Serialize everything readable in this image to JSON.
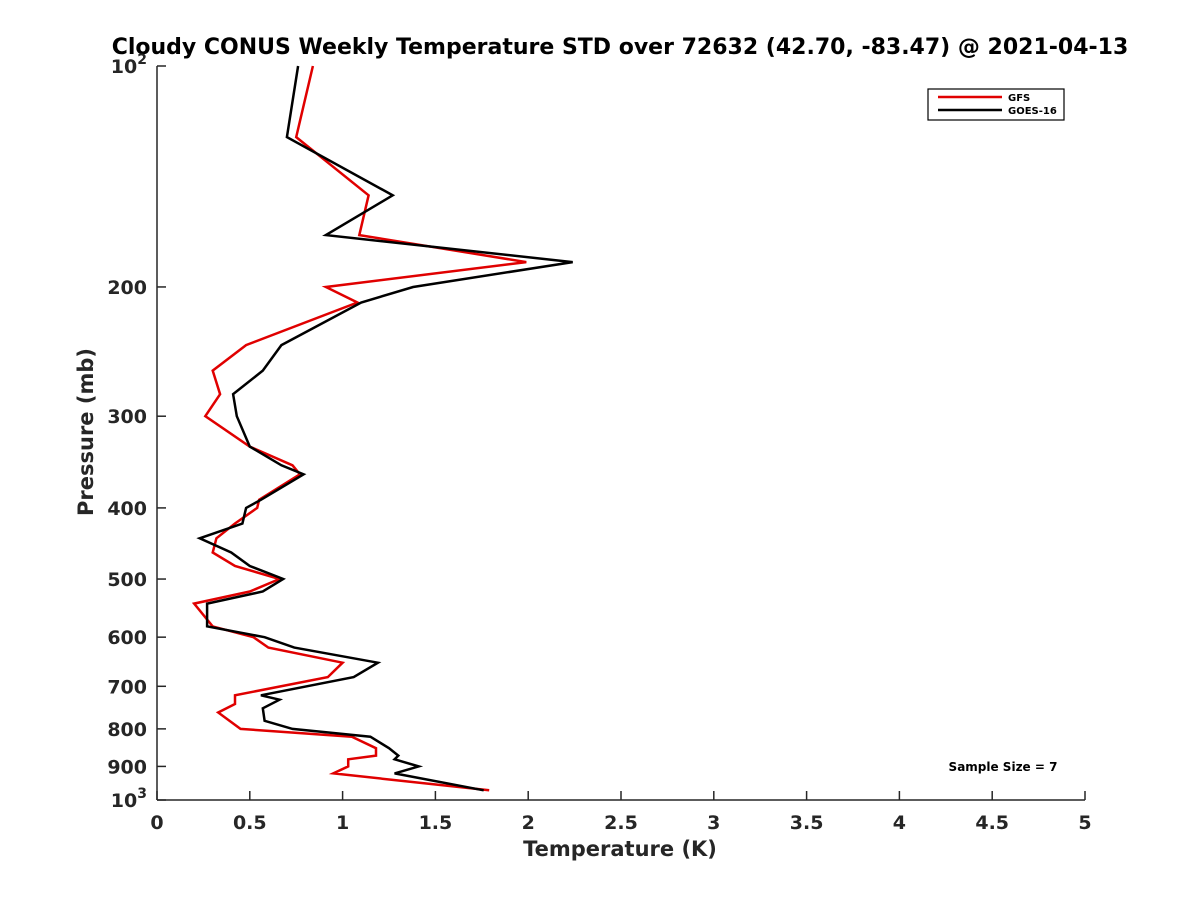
{
  "chart_data": {
    "type": "line",
    "title": "Cloudy CONUS Weekly Temperature STD over 72632 (42.70, -83.47) @ 2021-04-13",
    "xlabel": "Temperature (K)",
    "ylabel": "Pressure (mb)",
    "xlim": [
      0,
      5
    ],
    "ylim": [
      100,
      1000
    ],
    "y_scale": "log",
    "y_reversed": true,
    "x_ticks": [
      "0",
      "0.5",
      "1",
      "1.5",
      "2",
      "2.5",
      "3",
      "3.5",
      "4",
      "4.5",
      "5"
    ],
    "x_tick_values": [
      0,
      0.5,
      1,
      1.5,
      2,
      2.5,
      3,
      3.5,
      4,
      4.5,
      5
    ],
    "y_ticks": [
      {
        "value": 100,
        "base": "10",
        "exp": "2"
      },
      {
        "value": 200,
        "label": "200"
      },
      {
        "value": 300,
        "label": "300"
      },
      {
        "value": 400,
        "label": "400"
      },
      {
        "value": 500,
        "label": "500"
      },
      {
        "value": 600,
        "label": "600"
      },
      {
        "value": 700,
        "label": "700"
      },
      {
        "value": 800,
        "label": "800"
      },
      {
        "value": 900,
        "label": "900"
      },
      {
        "value": 1000,
        "base": "10",
        "exp": "3"
      }
    ],
    "grid": false,
    "legend_position": "top-right",
    "annotation": "Sample Size = 7",
    "series": [
      {
        "name": "GFS",
        "color": "#e00000",
        "points": [
          [
            0.84,
            100
          ],
          [
            0.75,
            125
          ],
          [
            1.14,
            150
          ],
          [
            1.09,
            170
          ],
          [
            1.99,
            185
          ],
          [
            0.91,
            200
          ],
          [
            1.08,
            210
          ],
          [
            0.48,
            240
          ],
          [
            0.3,
            260
          ],
          [
            0.34,
            280
          ],
          [
            0.26,
            300
          ],
          [
            0.5,
            330
          ],
          [
            0.73,
            350
          ],
          [
            0.77,
            360
          ],
          [
            0.55,
            390
          ],
          [
            0.54,
            400
          ],
          [
            0.42,
            420
          ],
          [
            0.32,
            440
          ],
          [
            0.3,
            460
          ],
          [
            0.42,
            480
          ],
          [
            0.66,
            500
          ],
          [
            0.5,
            520
          ],
          [
            0.2,
            540
          ],
          [
            0.3,
            580
          ],
          [
            0.52,
            600
          ],
          [
            0.6,
            620
          ],
          [
            1.0,
            650
          ],
          [
            0.92,
            680
          ],
          [
            0.42,
            720
          ],
          [
            0.42,
            740
          ],
          [
            0.33,
            760
          ],
          [
            0.45,
            800
          ],
          [
            1.05,
            820
          ],
          [
            1.18,
            850
          ],
          [
            1.18,
            870
          ],
          [
            1.03,
            880
          ],
          [
            1.03,
            900
          ],
          [
            0.95,
            920
          ],
          [
            1.79,
            970
          ]
        ]
      },
      {
        "name": "GOES-16",
        "color": "#000000",
        "points": [
          [
            0.76,
            100
          ],
          [
            0.7,
            125
          ],
          [
            1.27,
            150
          ],
          [
            0.91,
            170
          ],
          [
            2.24,
            185
          ],
          [
            1.38,
            200
          ],
          [
            1.1,
            210
          ],
          [
            0.67,
            240
          ],
          [
            0.57,
            260
          ],
          [
            0.41,
            280
          ],
          [
            0.43,
            300
          ],
          [
            0.5,
            330
          ],
          [
            0.67,
            350
          ],
          [
            0.79,
            360
          ],
          [
            0.56,
            390
          ],
          [
            0.48,
            400
          ],
          [
            0.46,
            420
          ],
          [
            0.23,
            440
          ],
          [
            0.4,
            460
          ],
          [
            0.5,
            480
          ],
          [
            0.68,
            500
          ],
          [
            0.57,
            520
          ],
          [
            0.27,
            540
          ],
          [
            0.27,
            580
          ],
          [
            0.58,
            600
          ],
          [
            0.74,
            620
          ],
          [
            1.19,
            650
          ],
          [
            1.06,
            680
          ],
          [
            0.56,
            720
          ],
          [
            0.66,
            730
          ],
          [
            0.57,
            750
          ],
          [
            0.58,
            780
          ],
          [
            0.73,
            800
          ],
          [
            1.15,
            820
          ],
          [
            1.25,
            850
          ],
          [
            1.3,
            870
          ],
          [
            1.28,
            880
          ],
          [
            1.41,
            900
          ],
          [
            1.28,
            920
          ],
          [
            1.76,
            970
          ]
        ]
      }
    ]
  }
}
